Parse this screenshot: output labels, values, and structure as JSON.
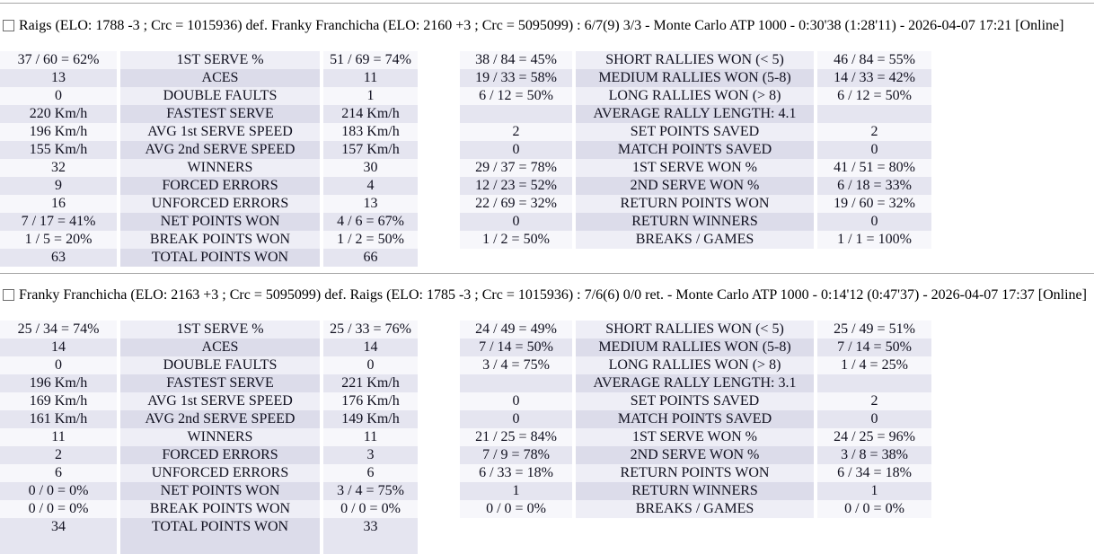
{
  "colors": {
    "row_odd_value_bg": "#f7f7fb",
    "row_odd_label_bg": "#eeeef6",
    "row_even_value_bg": "#e5e5f0",
    "row_even_label_bg": "#dcdcea",
    "divider": "#a6a6a6",
    "text": "#10101f",
    "title_text": "#000000"
  },
  "matches": [
    {
      "title": "Raigs (ELO: 1788 -3 ; Crc = 1015936) def. Franky Franchicha (ELO: 2160 +3 ; Crc = 5095099) : 6/7(9) 3/3 - Monte Carlo ATP 1000 - 0:30'38 (1:28'11) - 2026-04-07 17:21 [Online]",
      "checkbox_checked": false,
      "serve_stats": [
        [
          "37 / 60 = 62%",
          "1ST SERVE %",
          "51 / 69 = 74%"
        ],
        [
          "13",
          "ACES",
          "11"
        ],
        [
          "0",
          "DOUBLE FAULTS",
          "1"
        ],
        [
          "220 Km/h",
          "FASTEST SERVE",
          "214 Km/h"
        ],
        [
          "196 Km/h",
          "AVG 1st SERVE SPEED",
          "183 Km/h"
        ],
        [
          "155 Km/h",
          "AVG 2nd SERVE SPEED",
          "157 Km/h"
        ],
        [
          "32",
          "WINNERS",
          "30"
        ],
        [
          "9",
          "FORCED ERRORS",
          "4"
        ],
        [
          "16",
          "UNFORCED ERRORS",
          "13"
        ],
        [
          "7 / 17 = 41%",
          "NET POINTS WON",
          "4 / 6 = 67%"
        ],
        [
          "1 / 5 = 20%",
          "BREAK POINTS WON",
          "1 / 2 = 50%"
        ],
        [
          "63",
          "TOTAL POINTS WON",
          "66"
        ]
      ],
      "rally_stats": [
        [
          "38 / 84 = 45%",
          "SHORT RALLIES WON (< 5)",
          "46 / 84 = 55%"
        ],
        [
          "19 / 33 = 58%",
          "MEDIUM RALLIES WON (5-8)",
          "14 / 33 = 42%"
        ],
        [
          "6 / 12 = 50%",
          "LONG RALLIES WON (> 8)",
          "6 / 12 = 50%"
        ],
        [
          "",
          "AVERAGE RALLY LENGTH: 4.1",
          ""
        ],
        [
          "2",
          "SET POINTS SAVED",
          "2"
        ],
        [
          "0",
          "MATCH POINTS SAVED",
          "0"
        ],
        [
          "29 / 37 = 78%",
          "1ST SERVE WON %",
          "41 / 51 = 80%"
        ],
        [
          "12 / 23 = 52%",
          "2ND SERVE WON %",
          "6 / 18 = 33%"
        ],
        [
          "22 / 69 = 32%",
          "RETURN POINTS WON",
          "19 / 60 = 32%"
        ],
        [
          "0",
          "RETURN WINNERS",
          "0"
        ],
        [
          "1 / 2 = 50%",
          "BREAKS / GAMES",
          "1 / 1 = 100%"
        ]
      ]
    },
    {
      "title": "Franky Franchicha (ELO: 2163 +3 ; Crc = 5095099) def. Raigs (ELO: 1785 -3 ; Crc = 1015936) : 7/6(6) 0/0 ret. - Monte Carlo ATP 1000 - 0:14'12 (0:47'37) - 2026-04-07 17:37 [Online]",
      "checkbox_checked": false,
      "serve_stats": [
        [
          "25 / 34 = 74%",
          "1ST SERVE %",
          "25 / 33 = 76%"
        ],
        [
          "14",
          "ACES",
          "14"
        ],
        [
          "0",
          "DOUBLE FAULTS",
          "0"
        ],
        [
          "196 Km/h",
          "FASTEST SERVE",
          "221 Km/h"
        ],
        [
          "169 Km/h",
          "AVG 1st SERVE SPEED",
          "176 Km/h"
        ],
        [
          "161 Km/h",
          "AVG 2nd SERVE SPEED",
          "149 Km/h"
        ],
        [
          "11",
          "WINNERS",
          "11"
        ],
        [
          "2",
          "FORCED ERRORS",
          "3"
        ],
        [
          "6",
          "UNFORCED ERRORS",
          "6"
        ],
        [
          "0 / 0 = 0%",
          "NET POINTS WON",
          "3 / 4 = 75%"
        ],
        [
          "0 / 0 = 0%",
          "BREAK POINTS WON",
          "0 / 0 = 0%"
        ],
        [
          "34",
          "TOTAL POINTS WON",
          "33"
        ]
      ],
      "rally_stats": [
        [
          "24 / 49 = 49%",
          "SHORT RALLIES WON (< 5)",
          "25 / 49 = 51%"
        ],
        [
          "7 / 14 = 50%",
          "MEDIUM RALLIES WON (5-8)",
          "7 / 14 = 50%"
        ],
        [
          "3 / 4 = 75%",
          "LONG RALLIES WON (> 8)",
          "1 / 4 = 25%"
        ],
        [
          "",
          "AVERAGE RALLY LENGTH: 3.1",
          ""
        ],
        [
          "0",
          "SET POINTS SAVED",
          "2"
        ],
        [
          "0",
          "MATCH POINTS SAVED",
          "0"
        ],
        [
          "21 / 25 = 84%",
          "1ST SERVE WON %",
          "24 / 25 = 96%"
        ],
        [
          "7 / 9 = 78%",
          "2ND SERVE WON %",
          "3 / 8 = 38%"
        ],
        [
          "6 / 33 = 18%",
          "RETURN POINTS WON",
          "6 / 34 = 18%"
        ],
        [
          "1",
          "RETURN WINNERS",
          "1"
        ],
        [
          "0 / 0 = 0%",
          "BREAKS / GAMES",
          "0 / 0 = 0%"
        ]
      ]
    }
  ]
}
